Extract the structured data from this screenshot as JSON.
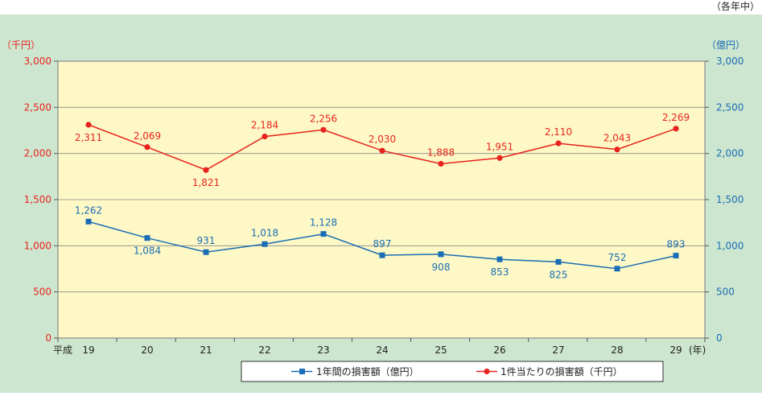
{
  "note": "（各年中）",
  "chart_data": {
    "type": "line",
    "era_label": "平成",
    "categories": [
      "19",
      "20",
      "21",
      "22",
      "23",
      "24",
      "25",
      "26",
      "27",
      "28",
      "29"
    ],
    "x_unit": "(年)",
    "left_axis": {
      "unit": "（千円）",
      "ylim": [
        0,
        3000
      ],
      "ticks": [
        "0",
        "500",
        "1,000",
        "1,500",
        "2,000",
        "2,500",
        "3,000"
      ],
      "color": "#e8231f"
    },
    "right_axis": {
      "unit": "（億円）",
      "ylim": [
        0,
        3000
      ],
      "ticks": [
        "0",
        "500",
        "1,000",
        "1,500",
        "2,000",
        "2,500",
        "3,000"
      ],
      "color": "#1a6db5"
    },
    "grid": true,
    "legend_position": "bottom",
    "series": [
      {
        "name": "1年間の損害額（億円）",
        "marker": "square",
        "color": "#1a6db5",
        "values": [
          1262,
          1084,
          931,
          1018,
          1128,
          897,
          908,
          853,
          825,
          752,
          893
        ],
        "labels": [
          "1,262",
          "1,084",
          "931",
          "1,018",
          "1,128",
          "897",
          "908",
          "853",
          "825",
          "752",
          "893"
        ],
        "label_pos": [
          "above",
          "below",
          "above",
          "above",
          "above",
          "above",
          "below",
          "below",
          "below",
          "above",
          "above"
        ]
      },
      {
        "name": "1件当たりの損害額（千円）",
        "marker": "circle",
        "color": "#e8231f",
        "values": [
          2311,
          2069,
          1821,
          2184,
          2256,
          2030,
          1888,
          1951,
          2110,
          2043,
          2269
        ],
        "labels": [
          "2,311",
          "2,069",
          "1,821",
          "2,184",
          "2,256",
          "2,030",
          "1,888",
          "1,951",
          "2,110",
          "2,043",
          "2,269"
        ],
        "label_pos": [
          "below",
          "above",
          "below",
          "above",
          "above",
          "above",
          "above",
          "above",
          "above",
          "above",
          "above"
        ]
      }
    ]
  }
}
